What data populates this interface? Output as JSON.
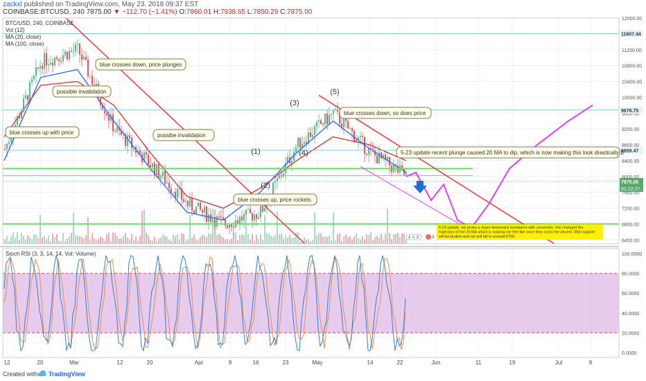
{
  "header": {
    "user": "zackxl",
    "published": "published on TradingView.com, May 23, 2018 09:37 EST",
    "symbol": "COINBASE:BTCUSD, 240",
    "last": "7875.00",
    "change_arrow": "▼",
    "change": "−112.70 (−1.41%)",
    "o_label": "O:",
    "o_val": "7860.01",
    "h_label": "H:",
    "h_val": "7938.65",
    "l_label": "L:",
    "l_val": "7850.29",
    "c_label": "C:",
    "c_val": "7875.00"
  },
  "legend": {
    "title": "BTC/USD, 240, COINBASE",
    "items": [
      "Vol (12)",
      "MA (20, close)",
      "MA (100, close)"
    ]
  },
  "price_axis": {
    "ticks": [
      "12000.00",
      "11600.00",
      "11200.00",
      "10800.00",
      "10400.00",
      "10000.00",
      "9600.00",
      "9200.00",
      "8800.00",
      "8400.00",
      "8000.00",
      "7600.00",
      "7200.00",
      "6800.00",
      "6400.00"
    ],
    "marker_top": "11607.44",
    "marker_upper": "9678.75",
    "marker_mid": "8659.47",
    "marker_last": "7875.00",
    "marker_time": "01:22:27"
  },
  "time_axis": {
    "labels": [
      "12",
      "20",
      "Mar",
      "12",
      "20",
      "Apr",
      "9",
      "16",
      "23",
      "May",
      "14",
      "22",
      "Jun",
      "11",
      "19",
      "Jul",
      "9"
    ]
  },
  "annotations": [
    "blue crosses down, price plunges",
    "possible invalidation",
    "blue crosses up with price",
    "possibe invalidation",
    "blue crosses up, price rockets",
    "blue crosses  down, so does price",
    "5-23 update recent plunge caused 20 MA to dip, which is now making this look drastically b"
  ],
  "note_box": "5-23 update, we broke a major downward resistance with conviction. this changed the trajectory of the 20 MA which is making me feel like once they cross the decent 7800 support will be broken and we will fall to around 6700.",
  "waves": [
    "(1)",
    "(2)",
    "(3)",
    "(4)",
    "(5)"
  ],
  "event_badge": "1 ⇩ 2",
  "event_badge_2": "3",
  "rsi": {
    "title": "Stoch RSI (3, 3, 14, 14, Vol: Volume)",
    "ticks": [
      "100.0000",
      "80.0000",
      "60.0000",
      "40.0000",
      "20.0000",
      "0.0000"
    ],
    "upper_band": 80,
    "lower_band": 20
  },
  "footer": {
    "created": "Created with",
    "brand": "TradingView"
  },
  "colors": {
    "ma20": "#2962ff",
    "ma100": "#d32f2f",
    "trendline": "#e53935",
    "support": "#66dd66",
    "projection": "#e040fb",
    "rsi_fill": "#e1bee7",
    "note": "#fff200"
  },
  "chart_data": {
    "type": "candlestick",
    "title": "BTC/USD, 240, COINBASE",
    "ylim": [
      6300,
      12000
    ],
    "x": [
      "Feb 12",
      "Feb 20",
      "Mar 1",
      "Mar 12",
      "Mar 20",
      "Apr 1",
      "Apr 9",
      "Apr 16",
      "Apr 23",
      "May 1",
      "May 14",
      "May 22",
      "Jun 1",
      "Jun 11",
      "Jun 19",
      "Jul 1",
      "Jul 9"
    ],
    "price_series": {
      "name": "close (approx)",
      "values": [
        8700,
        10900,
        11200,
        9200,
        8300,
        7300,
        6800,
        7100,
        8800,
        9600,
        8600,
        8000
      ]
    },
    "ma20": {
      "name": "MA (20, close)",
      "values": [
        8400,
        10500,
        10700,
        9400,
        8200,
        7100,
        6900,
        7600,
        8600,
        9400,
        8700,
        8100
      ]
    },
    "ma100": {
      "name": "MA (100, close)",
      "values": [
        9000,
        10300,
        10400,
        9800,
        8600,
        7500,
        7200,
        7700,
        8400,
        9000,
        8800,
        8400
      ]
    },
    "projection": {
      "values": [
        8000,
        8100,
        7400,
        7800,
        6900,
        6700,
        7300,
        8200,
        8800,
        9400,
        9800
      ]
    },
    "support_levels": [
      8200,
      6800
    ],
    "horizontal_levels": [
      11607.44,
      9678.75,
      8659.47,
      7875.0
    ],
    "rsi_ylim": [
      0,
      100
    ]
  }
}
